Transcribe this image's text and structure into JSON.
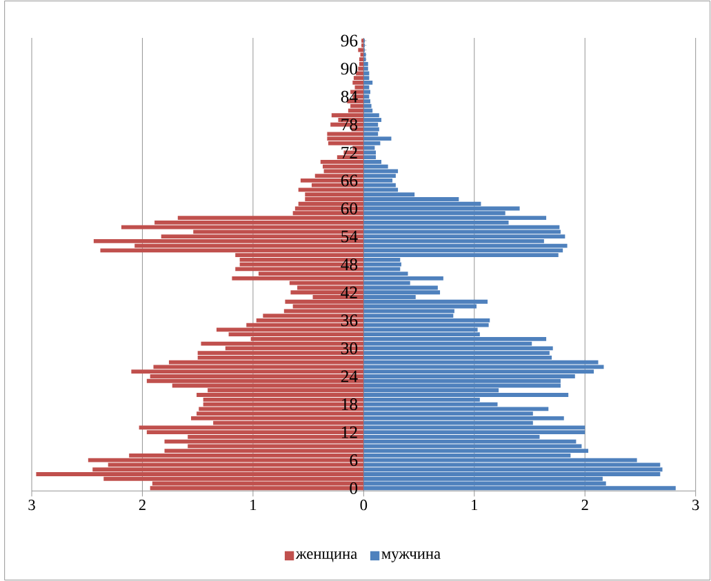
{
  "chart_data": {
    "type": "bar",
    "orientation": "horizontal",
    "categories": [
      "96",
      null,
      null,
      null,
      null,
      null,
      "90",
      null,
      null,
      null,
      null,
      null,
      "84",
      null,
      null,
      null,
      null,
      null,
      "78",
      null,
      null,
      null,
      null,
      null,
      "72",
      null,
      null,
      null,
      null,
      null,
      "66",
      null,
      null,
      null,
      null,
      null,
      "60",
      null,
      null,
      null,
      null,
      null,
      "54",
      null,
      null,
      null,
      null,
      null,
      "48",
      null,
      null,
      null,
      null,
      null,
      "42",
      null,
      null,
      null,
      null,
      null,
      "36",
      null,
      null,
      null,
      null,
      null,
      "30",
      null,
      null,
      null,
      null,
      null,
      "24",
      null,
      null,
      null,
      null,
      null,
      "18",
      null,
      null,
      null,
      null,
      null,
      "12",
      null,
      null,
      null,
      null,
      null,
      "6",
      null,
      null,
      null,
      null,
      null,
      "0"
    ],
    "series": [
      {
        "name": "женщина",
        "color": "#c0504d",
        "values": [
          -0.02,
          -0.02,
          -0.05,
          -0.03,
          -0.04,
          -0.04,
          -0.05,
          -0.07,
          -0.09,
          -0.1,
          -0.08,
          -0.12,
          -0.1,
          -0.15,
          -0.12,
          -0.14,
          -0.29,
          -0.23,
          -0.3,
          -0.11,
          -0.33,
          -0.33,
          -0.32,
          -0.1,
          -0.18,
          -0.24,
          -0.39,
          -0.37,
          -0.36,
          -0.44,
          -0.57,
          -0.47,
          -0.59,
          -0.53,
          -0.53,
          -0.59,
          -0.62,
          -0.64,
          -1.68,
          -1.89,
          -2.19,
          -1.54,
          -1.83,
          -2.44,
          -2.07,
          -2.38,
          -1.16,
          -1.12,
          -1.12,
          -1.16,
          -0.95,
          -1.19,
          -0.67,
          -0.6,
          -0.66,
          -0.46,
          -0.71,
          -0.64,
          -0.72,
          -0.91,
          -0.97,
          -1.06,
          -1.33,
          -1.22,
          -1.02,
          -1.47,
          -1.25,
          -1.5,
          -1.5,
          -1.76,
          -1.9,
          -2.1,
          -1.93,
          -1.96,
          -1.73,
          -1.41,
          -1.51,
          -1.45,
          -1.45,
          -1.49,
          -1.51,
          -1.56,
          -1.36,
          -2.03,
          -1.96,
          -1.59,
          -1.8,
          -1.59,
          -1.8,
          -2.12,
          -2.49,
          -2.31,
          -2.45,
          -2.96,
          -2.35,
          -1.91,
          -1.93
        ]
      },
      {
        "name": "мужчина",
        "color": "#4f81bd",
        "values": [
          0.01,
          0.01,
          0.01,
          0.02,
          0.02,
          0.04,
          0.04,
          0.05,
          0.05,
          0.08,
          0.05,
          0.06,
          0.05,
          0.06,
          0.07,
          0.08,
          0.14,
          0.16,
          0.13,
          0.14,
          0.13,
          0.25,
          0.15,
          0.1,
          0.11,
          0.11,
          0.16,
          0.22,
          0.31,
          0.29,
          0.26,
          0.29,
          0.31,
          0.46,
          0.86,
          1.06,
          1.41,
          1.28,
          1.65,
          1.31,
          1.77,
          1.78,
          1.82,
          1.63,
          1.84,
          1.8,
          1.76,
          0.33,
          0.34,
          0.33,
          0.4,
          0.72,
          0.42,
          0.67,
          0.69,
          0.47,
          1.12,
          1.02,
          0.82,
          0.81,
          1.14,
          1.13,
          1.03,
          1.05,
          1.65,
          1.52,
          1.71,
          1.68,
          1.7,
          2.12,
          2.17,
          2.08,
          1.91,
          1.78,
          1.78,
          1.22,
          1.85,
          1.05,
          1.21,
          1.67,
          1.53,
          1.81,
          1.53,
          2.0,
          2.0,
          1.59,
          1.92,
          1.97,
          2.03,
          1.87,
          2.47,
          2.68,
          2.7,
          2.68,
          2.16,
          2.19,
          2.82
        ]
      }
    ],
    "xlim": [
      -3,
      3
    ],
    "xticks": [
      {
        "value": -3,
        "label": "3"
      },
      {
        "value": -2,
        "label": "2"
      },
      {
        "value": -1,
        "label": "1"
      },
      {
        "value": 0,
        "label": "0"
      },
      {
        "value": 1,
        "label": "1"
      },
      {
        "value": 2,
        "label": "2"
      },
      {
        "value": 3,
        "label": "3"
      }
    ],
    "grid": "x",
    "legend": "bottom",
    "stacked": true
  }
}
